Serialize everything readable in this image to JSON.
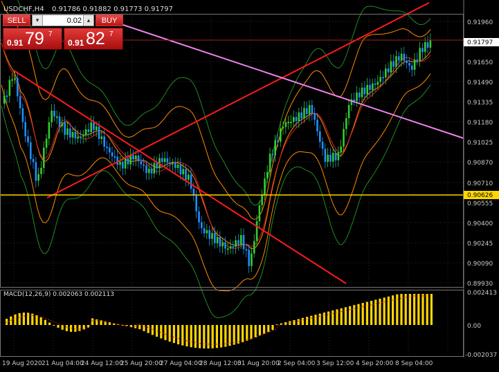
{
  "chart_header": {
    "symbol": "USDCHF,H4",
    "ohlc": "0.91786 0.91882 0.91773 0.91797"
  },
  "trade_panel": {
    "sell_label": "SELL",
    "buy_label": "BUY",
    "lot_value": "0.02",
    "sell_price": {
      "small": "0.91",
      "big": "79",
      "sup": "7"
    },
    "buy_price": {
      "small": "0.91",
      "big": "82",
      "sup": "7"
    },
    "down_arrow": "▾",
    "up_arrow": "▴"
  },
  "price_axis": {
    "labels": [
      "0.91960",
      "0.91650",
      "0.91490",
      "0.91335",
      "0.91180",
      "0.91025",
      "0.90870",
      "0.90710",
      "0.90555",
      "0.90400",
      "0.90245",
      "0.90090",
      "0.89930"
    ],
    "current_price_tag": "0.91797",
    "hline_price_tag": "0.90626"
  },
  "macd": {
    "title": "MACD(12,26,9) 0.002063 0.002113",
    "labels": [
      "0.002413",
      "0.00",
      "-0.002037"
    ]
  },
  "time_axis": {
    "labels": [
      "19 Aug 2020",
      "21 Aug 04:00",
      "24 Aug 12:00",
      "25 Aug 20:00",
      "27 Aug 04:00",
      "28 Aug 12:00",
      "31 Aug 20:00",
      "2 Sep 04:00",
      "3 Sep 12:00",
      "4 Sep 20:00",
      "8 Sep 04:00"
    ]
  },
  "colors": {
    "bull": "#32cd32",
    "bear": "#1e90ff",
    "trendline": "#ff1a1a",
    "channel": "#ee82ee",
    "hline": "#ffd700",
    "bb_outer": "#ff8c00",
    "bb_green": "#228b22",
    "ma_red": "#d42020",
    "macd_hist": "#ffd700",
    "macd_signal": "#c02020",
    "grid": "#2b2b2b"
  },
  "icons": {
    "lot_down": "chevron-down-icon",
    "lot_up": "chevron-up-icon"
  }
}
